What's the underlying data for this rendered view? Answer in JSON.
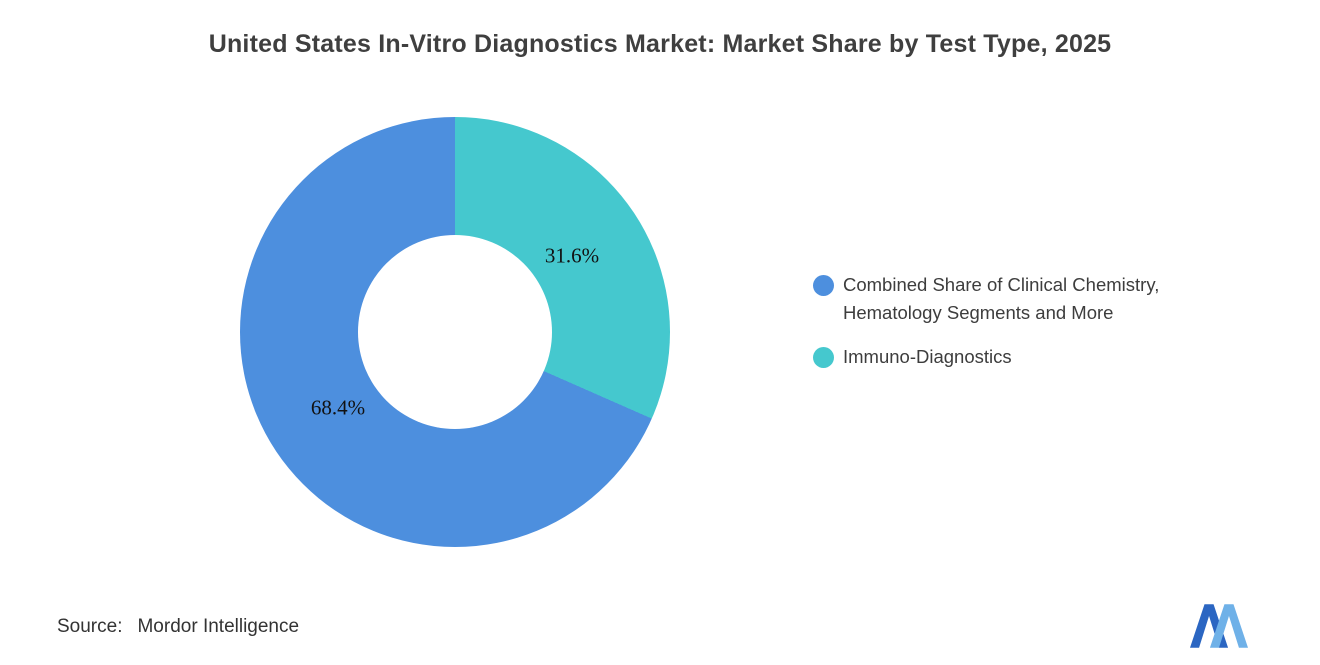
{
  "title": "United States In-Vitro Diagnostics Market: Market Share by Test Type, 2025",
  "chart_data": {
    "type": "pie",
    "donut": true,
    "start_angle_deg": 0,
    "direction": "clockwise",
    "title": "United States In-Vitro Diagnostics Market: Market Share by Test Type, 2025",
    "legend_position": "right",
    "hole_ratio": 0.45,
    "label_radius_ratio": 0.65,
    "slices": [
      {
        "label": "Immuno-Diagnostics",
        "value": 31.6,
        "data_label": "31.6%",
        "color": "#45c8ce"
      },
      {
        "label": "Combined Share of Clinical Chemistry, Hematology Segments and More",
        "value": 68.4,
        "data_label": "68.4%",
        "color": "#4d8fde"
      }
    ]
  },
  "legend": {
    "items": [
      {
        "color": "#4d8fde",
        "line1": "Combined Share of Clinical Chemistry,",
        "line2": "Hematology Segments and More"
      },
      {
        "color": "#45c8ce",
        "line1": "Immuno-Diagnostics",
        "line2": ""
      }
    ]
  },
  "source": {
    "label": "Source:",
    "value": "Mordor Intelligence"
  },
  "logo": {
    "name": "mordor-intelligence-logo",
    "color_dark": "#2b66c2",
    "color_light": "#6fb1e8"
  }
}
